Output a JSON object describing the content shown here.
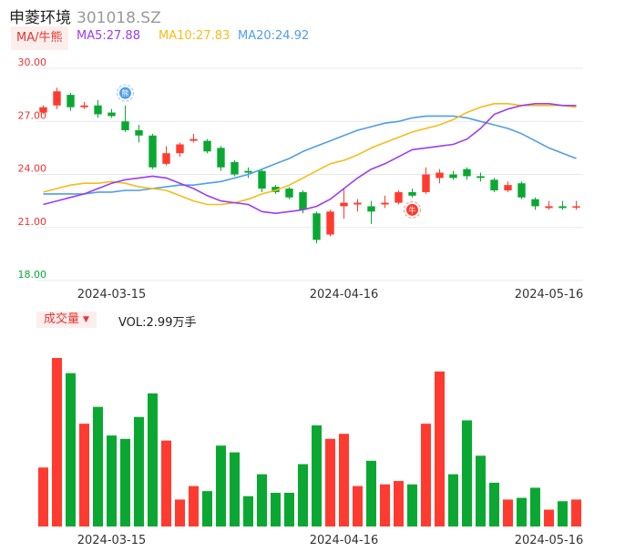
{
  "header": {
    "name": "申菱环境",
    "code": "301018.SZ",
    "ma_button": "MA/牛熊",
    "ma5_label": "MA5:27.88",
    "ma10_label": "MA10:27.83",
    "ma20_label": "MA20:24.92",
    "volume_button": "成交量",
    "volume_label": "VOL:2.99万手"
  },
  "colors": {
    "up": "#ff3b30",
    "down": "#0aa832",
    "ma5": "#9b3df2",
    "ma10": "#f5bc19",
    "ma20": "#4f9ee8",
    "axis_text": "#e8352f",
    "grid": "#e8e8e8"
  },
  "chart_data": [
    {
      "type": "candlestick",
      "y_ticks": [
        "30.00",
        "27.00",
        "24.00",
        "21.00",
        "18.00"
      ],
      "ylim": [
        18,
        30
      ],
      "x_ticks": [
        {
          "label": "2024-03-15",
          "index": 5
        },
        {
          "label": "2024-04-16",
          "index": 22
        },
        {
          "label": "2024-05-16",
          "index": 37
        }
      ],
      "candles": [
        {
          "o": 27.5,
          "c": 27.8,
          "h": 27.9,
          "l": 27.4
        },
        {
          "o": 27.9,
          "c": 28.7,
          "h": 28.9,
          "l": 27.7
        },
        {
          "o": 28.5,
          "c": 27.8,
          "h": 28.6,
          "l": 27.6
        },
        {
          "o": 27.8,
          "c": 27.9,
          "h": 28.1,
          "l": 27.7
        },
        {
          "o": 27.9,
          "c": 27.4,
          "h": 28.2,
          "l": 27.2
        },
        {
          "o": 27.5,
          "c": 27.3,
          "h": 27.7,
          "l": 27.2
        },
        {
          "o": 27.0,
          "c": 26.5,
          "h": 27.9,
          "l": 26.4
        },
        {
          "o": 26.5,
          "c": 26.2,
          "h": 26.8,
          "l": 25.8
        },
        {
          "o": 26.2,
          "c": 24.4,
          "h": 26.3,
          "l": 24.3
        },
        {
          "o": 24.6,
          "c": 25.2,
          "h": 25.6,
          "l": 24.5
        },
        {
          "o": 25.2,
          "c": 25.7,
          "h": 25.8,
          "l": 25.0
        },
        {
          "o": 25.9,
          "c": 26.0,
          "h": 26.3,
          "l": 25.8
        },
        {
          "o": 25.9,
          "c": 25.3,
          "h": 26.0,
          "l": 25.2
        },
        {
          "o": 25.5,
          "c": 24.4,
          "h": 25.6,
          "l": 24.2
        },
        {
          "o": 24.7,
          "c": 24.0,
          "h": 24.8,
          "l": 23.9
        },
        {
          "o": 24.2,
          "c": 24.1,
          "h": 24.4,
          "l": 23.8
        },
        {
          "o": 24.2,
          "c": 23.2,
          "h": 24.3,
          "l": 23.0
        },
        {
          "o": 23.3,
          "c": 23.0,
          "h": 23.4,
          "l": 22.9
        },
        {
          "o": 23.2,
          "c": 22.7,
          "h": 23.3,
          "l": 22.6
        },
        {
          "o": 23.0,
          "c": 22.0,
          "h": 23.1,
          "l": 21.8
        },
        {
          "o": 21.8,
          "c": 20.3,
          "h": 21.9,
          "l": 20.1
        },
        {
          "o": 20.6,
          "c": 21.9,
          "h": 22.0,
          "l": 20.5
        },
        {
          "o": 22.2,
          "c": 22.4,
          "h": 23.2,
          "l": 21.5
        },
        {
          "o": 22.3,
          "c": 22.4,
          "h": 22.6,
          "l": 21.9
        },
        {
          "o": 22.2,
          "c": 21.9,
          "h": 22.5,
          "l": 21.2
        },
        {
          "o": 22.3,
          "c": 22.4,
          "h": 22.8,
          "l": 22.1
        },
        {
          "o": 22.4,
          "c": 23.0,
          "h": 23.1,
          "l": 22.3
        },
        {
          "o": 23.0,
          "c": 22.8,
          "h": 23.2,
          "l": 22.7
        },
        {
          "o": 23.0,
          "c": 24.0,
          "h": 24.4,
          "l": 22.9
        },
        {
          "o": 23.8,
          "c": 24.1,
          "h": 24.3,
          "l": 23.5
        },
        {
          "o": 24.0,
          "c": 23.8,
          "h": 24.2,
          "l": 23.7
        },
        {
          "o": 24.3,
          "c": 23.9,
          "h": 24.4,
          "l": 23.7
        },
        {
          "o": 23.9,
          "c": 23.8,
          "h": 24.1,
          "l": 23.6
        },
        {
          "o": 23.7,
          "c": 23.1,
          "h": 23.8,
          "l": 23.0
        },
        {
          "o": 23.1,
          "c": 23.4,
          "h": 23.6,
          "l": 23.0
        },
        {
          "o": 23.5,
          "c": 22.7,
          "h": 23.6,
          "l": 22.6
        },
        {
          "o": 22.6,
          "c": 22.2,
          "h": 22.7,
          "l": 22.0
        },
        {
          "o": 22.1,
          "c": 22.2,
          "h": 22.5,
          "l": 22.0
        },
        {
          "o": 22.2,
          "c": 22.1,
          "h": 22.5,
          "l": 22.0
        },
        {
          "o": 22.2,
          "c": 22.2,
          "h": 22.5,
          "l": 22.0
        }
      ],
      "ma5": [
        22.3,
        22.5,
        22.7,
        22.9,
        23.2,
        23.5,
        23.7,
        23.8,
        23.9,
        23.8,
        23.5,
        23.2,
        22.8,
        22.5,
        22.4,
        22.3,
        21.9,
        21.8,
        21.9,
        22.0,
        22.2,
        22.6,
        23.2,
        23.8,
        24.3,
        24.6,
        25.0,
        25.4,
        25.5,
        25.6,
        25.7,
        26.0,
        26.6,
        27.4,
        27.7,
        27.9,
        28.0,
        28.0,
        27.9,
        27.9
      ],
      "ma10": [
        23.0,
        23.2,
        23.4,
        23.5,
        23.5,
        23.6,
        23.5,
        23.3,
        23.2,
        23.1,
        22.8,
        22.5,
        22.3,
        22.3,
        22.4,
        22.6,
        22.9,
        23.1,
        23.4,
        23.8,
        24.2,
        24.6,
        24.8,
        25.1,
        25.5,
        25.8,
        26.1,
        26.4,
        26.6,
        26.8,
        27.1,
        27.5,
        27.8,
        28.0,
        28.0,
        27.9,
        27.9,
        27.9,
        27.9,
        27.8
      ],
      "ma20": [
        22.9,
        22.9,
        22.9,
        22.9,
        23.0,
        23.0,
        23.1,
        23.1,
        23.2,
        23.3,
        23.4,
        23.4,
        23.5,
        23.6,
        23.8,
        24.0,
        24.3,
        24.6,
        24.9,
        25.3,
        25.6,
        25.9,
        26.2,
        26.5,
        26.7,
        26.9,
        27.0,
        27.2,
        27.3,
        27.3,
        27.3,
        27.2,
        27.0,
        26.8,
        26.6,
        26.3,
        25.9,
        25.5,
        25.2,
        24.9
      ],
      "markers": [
        {
          "label": "熊",
          "index": 6,
          "price": 28.6,
          "color": "#4f9ee8"
        },
        {
          "label": "牛",
          "index": 27,
          "price": 22.0,
          "color": "#ff3b30"
        }
      ]
    },
    {
      "type": "bar",
      "title": "成交量",
      "volume_max": 100,
      "x_ticks": [
        {
          "label": "2024-03-15",
          "index": 5
        },
        {
          "label": "2024-04-16",
          "index": 22
        },
        {
          "label": "2024-05-16",
          "index": 37
        }
      ],
      "volumes": [
        35,
        100,
        91,
        61,
        71,
        54,
        52,
        65,
        79,
        51,
        16,
        24,
        21,
        48,
        44,
        18,
        31,
        20,
        20,
        37,
        60,
        52,
        55,
        24,
        39,
        25,
        27,
        25,
        61,
        92,
        31,
        63,
        42,
        26,
        16,
        17,
        23,
        10,
        15,
        16
      ]
    }
  ]
}
